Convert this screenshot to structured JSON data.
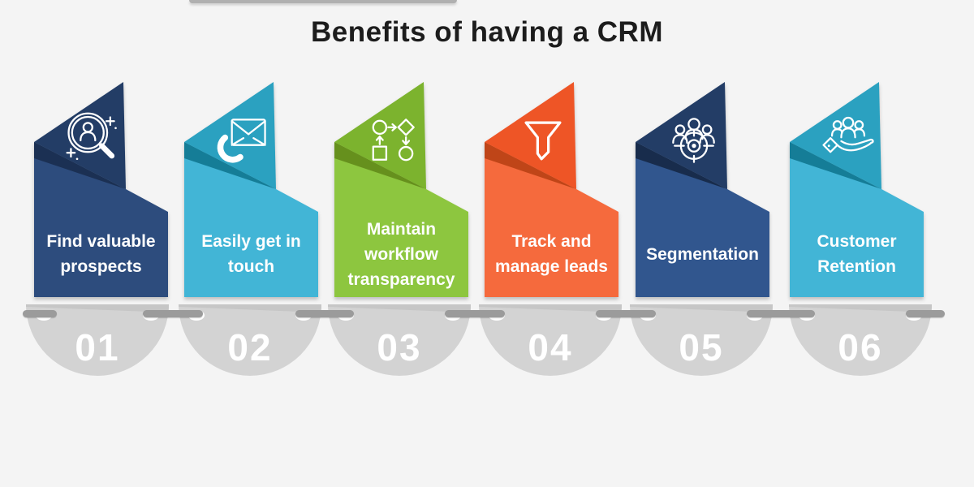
{
  "page": {
    "background": "#f4f4f4",
    "top_line_color": "#b0b0b0"
  },
  "title": "Benefits of having a CRM",
  "chain": {
    "disc_fill": "#d3d3d3",
    "disc_band_color": "#c6c6c6",
    "number_color": "#ffffff",
    "bar_color": "#9b9b9b",
    "eyelet_color": "#ffffff"
  },
  "items": [
    {
      "number": "01",
      "icon": "prospect-search-icon",
      "label_lines": [
        "Find valuable",
        "prospects"
      ],
      "colors": {
        "body": "#2d4c7d",
        "top": "#233d66",
        "fold": "#1b3053"
      }
    },
    {
      "number": "02",
      "icon": "phone-mail-icon",
      "label_lines": [
        "Easily get in",
        "touch"
      ],
      "colors": {
        "body": "#42b5d6",
        "top": "#2ba1c0",
        "fold": "#157d97"
      }
    },
    {
      "number": "03",
      "icon": "workflow-icon",
      "label_lines": [
        "Maintain",
        "workflow",
        "transparency"
      ],
      "colors": {
        "body": "#8dc63f",
        "top": "#7cb32e",
        "fold": "#66901d"
      }
    },
    {
      "number": "04",
      "icon": "funnel-icon",
      "label_lines": [
        "Track and",
        "manage leads"
      ],
      "colors": {
        "body": "#f56a3d",
        "top": "#ee5526",
        "fold": "#bf4518"
      }
    },
    {
      "number": "05",
      "icon": "segmentation-icon",
      "label_lines": [
        "Segmentation"
      ],
      "colors": {
        "body": "#31568e",
        "top": "#233d66",
        "fold": "#182c4c"
      }
    },
    {
      "number": "06",
      "icon": "customer-retention-icon",
      "label_lines": [
        "Customer",
        "Retention"
      ],
      "colors": {
        "body": "#42b5d6",
        "top": "#2ba1c0",
        "fold": "#157d97"
      }
    }
  ]
}
